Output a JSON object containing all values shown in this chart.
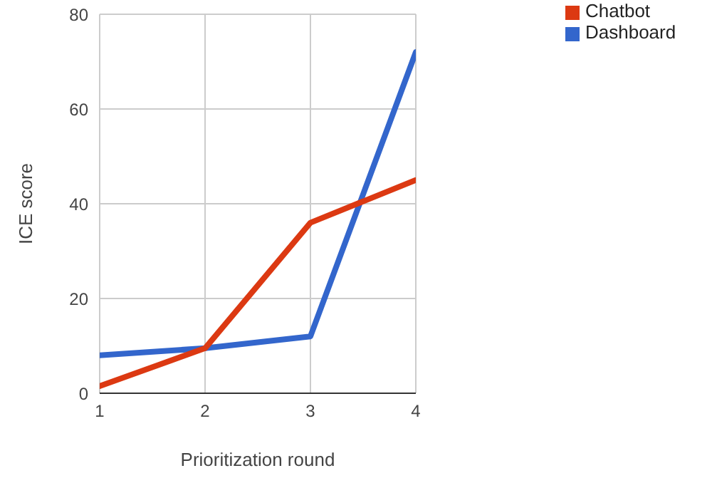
{
  "chart_data": {
    "type": "line",
    "xlabel": "Prioritization round",
    "ylabel": "ICE score",
    "x": [
      1,
      2,
      3,
      4
    ],
    "series": [
      {
        "name": "Dashboard",
        "color": "#3366cc",
        "values": [
          8,
          9.5,
          12,
          72
        ]
      },
      {
        "name": "Chatbot",
        "color": "#dc3912",
        "values": [
          1.5,
          9.5,
          36,
          45
        ]
      }
    ],
    "xlim": [
      1,
      4
    ],
    "xticks": [
      1,
      2,
      3,
      4
    ],
    "ylim": [
      0,
      80
    ],
    "yticks": [
      0,
      20,
      40,
      60,
      80
    ],
    "grid": true,
    "legend": "top right",
    "marker": "none",
    "line_style": "solid"
  }
}
